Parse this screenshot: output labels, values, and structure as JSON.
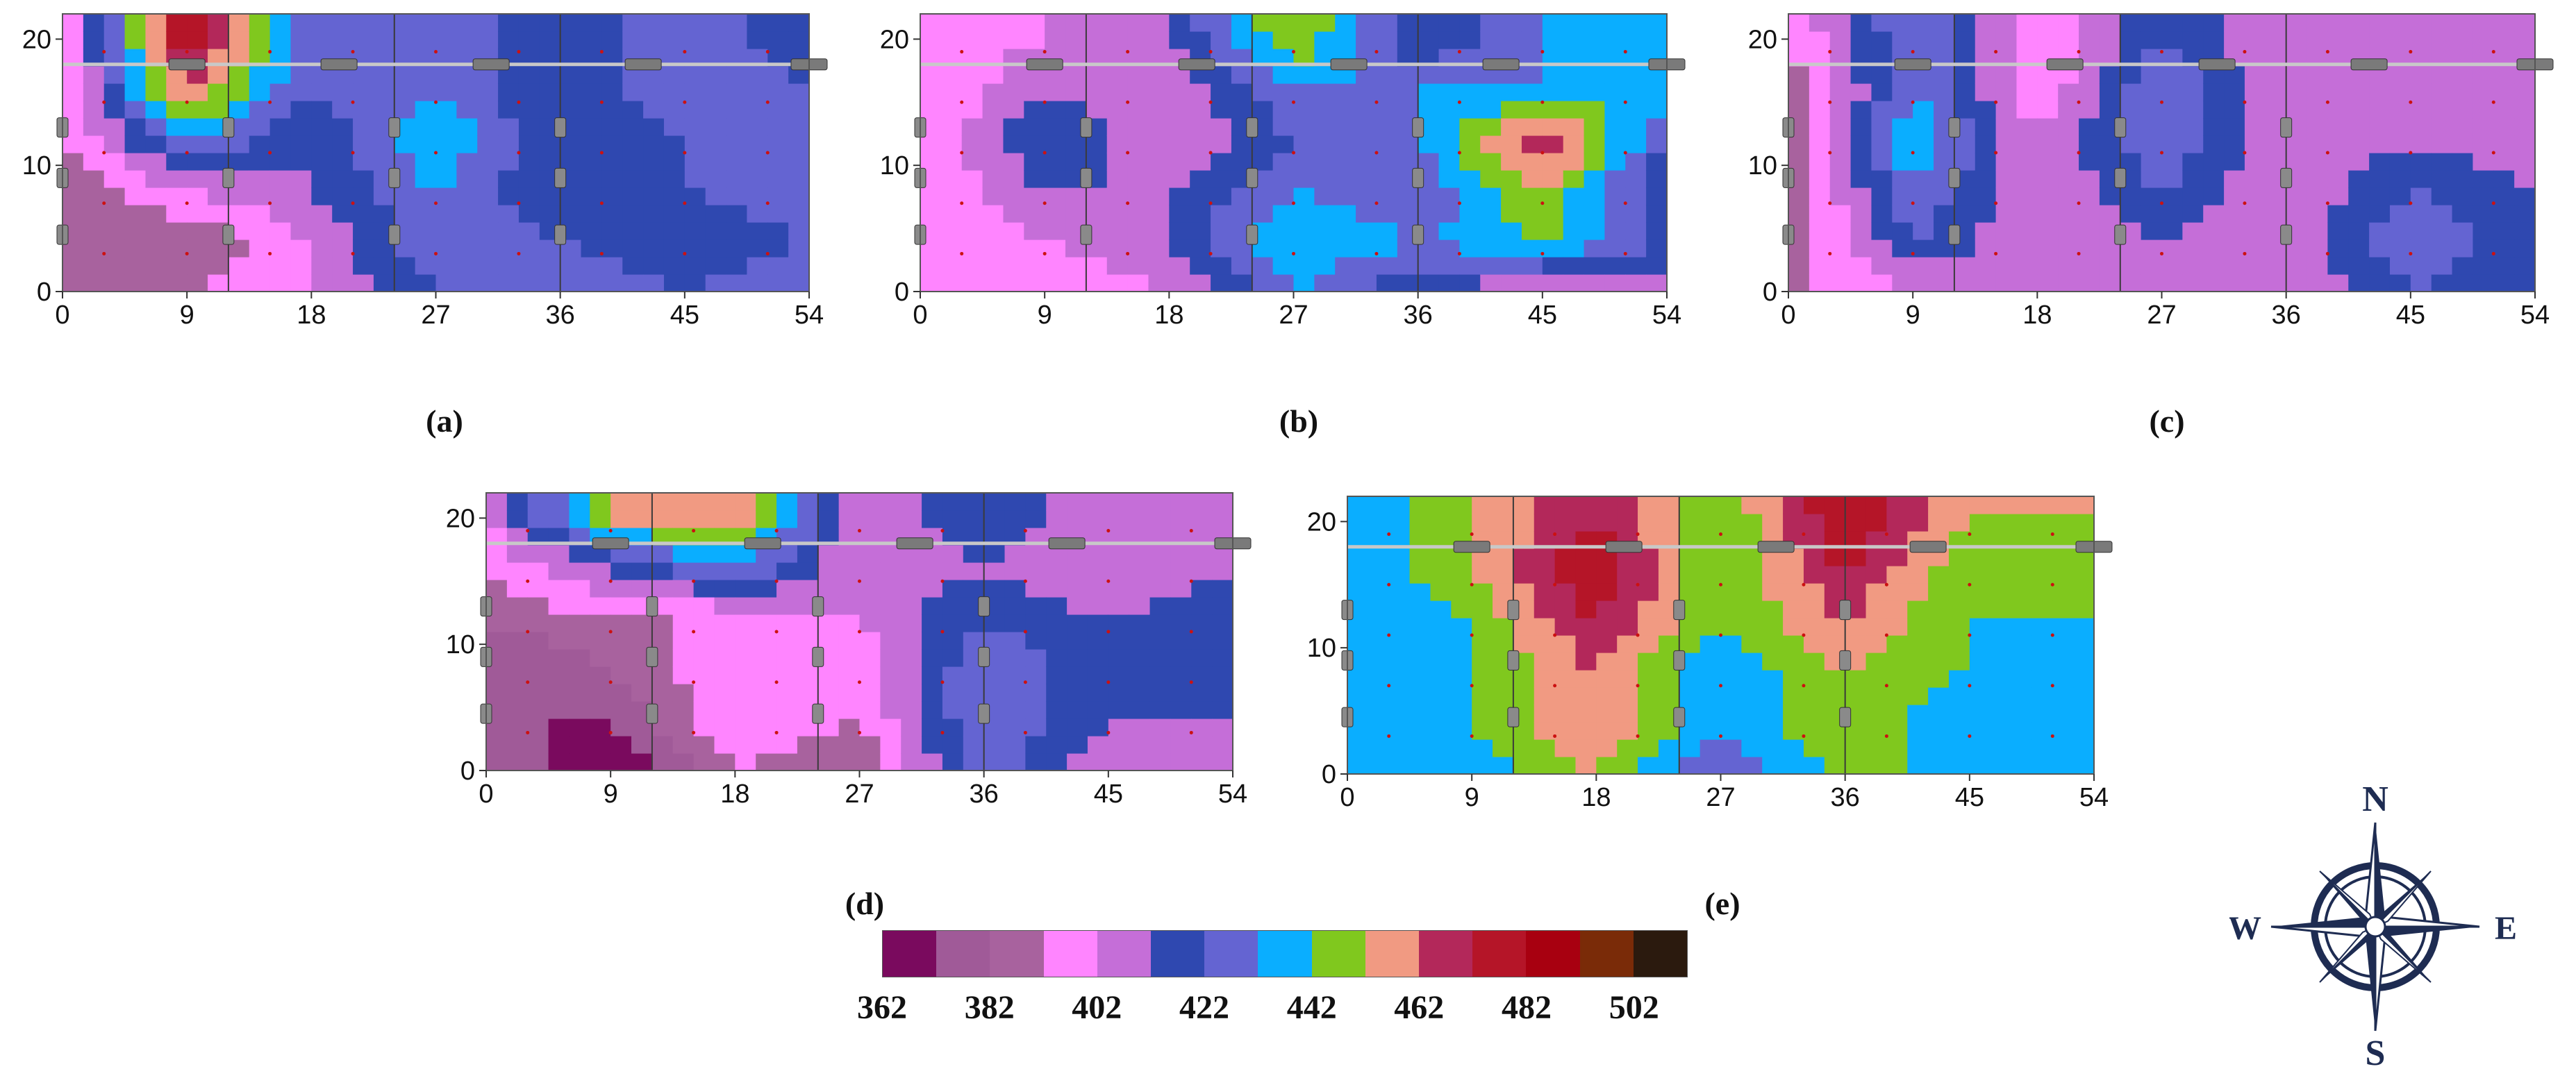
{
  "figure": {
    "panel_labels": [
      "(a)",
      "(b)",
      "(c)",
      "(d)",
      "(e)"
    ]
  },
  "chart_data": [
    {
      "type": "heatmap",
      "panel": "(a)",
      "x_ticks": [
        0,
        9,
        18,
        27,
        36,
        45,
        54
      ],
      "y_ticks": [
        0,
        10,
        20
      ],
      "xlim": [
        0,
        54
      ],
      "ylim": [
        0,
        22
      ],
      "grid_x": [
        0,
        9,
        18,
        27,
        36,
        45,
        54
      ],
      "grid_y": [
        0,
        4,
        8,
        12,
        16,
        20
      ],
      "values": [
        [
          382,
          392,
          402,
          422,
          432,
          422,
          432
        ],
        [
          382,
          382,
          402,
          432,
          422,
          412,
          422
        ],
        [
          382,
          402,
          412,
          432,
          412,
          422,
          432
        ],
        [
          392,
          432,
          412,
          442,
          412,
          422,
          432
        ],
        [
          392,
          462,
          422,
          432,
          412,
          432,
          422
        ],
        [
          392,
          482,
          422,
          432,
          412,
          432,
          412
        ]
      ]
    },
    {
      "type": "heatmap",
      "panel": "(b)",
      "x_ticks": [
        0,
        9,
        18,
        27,
        36,
        45,
        54
      ],
      "y_ticks": [
        0,
        10,
        20
      ],
      "xlim": [
        0,
        54
      ],
      "ylim": [
        0,
        22
      ],
      "grid_x": [
        0,
        9,
        18,
        27,
        36,
        45,
        54
      ],
      "grid_y": [
        0,
        4,
        8,
        12,
        16,
        20
      ],
      "values": [
        [
          402,
          392,
          402,
          432,
          412,
          402,
          402
        ],
        [
          392,
          402,
          412,
          442,
          432,
          442,
          422
        ],
        [
          392,
          412,
          412,
          432,
          422,
          452,
          412
        ],
        [
          392,
          422,
          402,
          422,
          432,
          472,
          422
        ],
        [
          392,
          412,
          402,
          432,
          432,
          432,
          442
        ],
        [
          392,
          402,
          412,
          452,
          412,
          432,
          442
        ]
      ]
    },
    {
      "type": "heatmap",
      "panel": "(c)",
      "x_ticks": [
        0,
        9,
        18,
        27,
        36,
        45,
        54
      ],
      "y_ticks": [
        0,
        10,
        20
      ],
      "xlim": [
        0,
        54
      ],
      "ylim": [
        0,
        22
      ],
      "grid_x": [
        0,
        9,
        18,
        27,
        36,
        45,
        54
      ],
      "grid_y": [
        0,
        4,
        8,
        12,
        16,
        20
      ],
      "values": [
        [
          392,
          402,
          402,
          402,
          402,
          422,
          412
        ],
        [
          382,
          422,
          402,
          412,
          402,
          432,
          412
        ],
        [
          382,
          432,
          402,
          422,
          402,
          422,
          412
        ],
        [
          382,
          442,
          402,
          432,
          402,
          412,
          402
        ],
        [
          382,
          432,
          392,
          432,
          402,
          402,
          402
        ],
        [
          392,
          432,
          392,
          422,
          402,
          402,
          402
        ]
      ]
    },
    {
      "type": "heatmap",
      "panel": "(d)",
      "x_ticks": [
        0,
        9,
        18,
        27,
        36,
        45,
        54
      ],
      "y_ticks": [
        0,
        10,
        20
      ],
      "xlim": [
        0,
        54
      ],
      "ylim": [
        0,
        22
      ],
      "grid_x": [
        0,
        9,
        18,
        27,
        36,
        45,
        54
      ],
      "grid_y": [
        0,
        4,
        8,
        12,
        16,
        20
      ],
      "values": [
        [
          382,
          362,
          392,
          382,
          432,
          402,
          402
        ],
        [
          372,
          372,
          402,
          392,
          432,
          412,
          412
        ],
        [
          372,
          382,
          402,
          392,
          432,
          412,
          422
        ],
        [
          382,
          392,
          392,
          402,
          422,
          412,
          422
        ],
        [
          392,
          412,
          432,
          402,
          412,
          402,
          412
        ],
        [
          402,
          452,
          462,
          402,
          422,
          402,
          412
        ]
      ]
    },
    {
      "type": "heatmap",
      "panel": "(e)",
      "x_ticks": [
        0,
        9,
        18,
        27,
        36,
        45,
        54
      ],
      "y_ticks": [
        0,
        10,
        20
      ],
      "xlim": [
        0,
        54
      ],
      "ylim": [
        0,
        22
      ],
      "grid_x": [
        0,
        9,
        18,
        27,
        36,
        45,
        54
      ],
      "grid_y": [
        0,
        4,
        8,
        12,
        16,
        20
      ],
      "values": [
        [
          442,
          432,
          452,
          422,
          442,
          442,
          442
        ],
        [
          432,
          442,
          462,
          432,
          452,
          432,
          442
        ],
        [
          432,
          442,
          462,
          432,
          452,
          442,
          432
        ],
        [
          432,
          442,
          472,
          442,
          462,
          442,
          442
        ],
        [
          432,
          452,
          482,
          442,
          472,
          442,
          452
        ],
        [
          432,
          452,
          472,
          442,
          482,
          452,
          452
        ]
      ]
    }
  ],
  "legend": {
    "colors": [
      "#7a0a5e",
      "#a05a98",
      "#a8629e",
      "#ff85ff",
      "#c56ed8",
      "#2f48b0",
      "#6464d2",
      "#0aaeff",
      "#80c81e",
      "#f19a82",
      "#b3285a",
      "#b51528",
      "#a80010",
      "#7a2b08",
      "#2b1a0e"
    ],
    "tick_labels": [
      "362",
      "382",
      "402",
      "422",
      "442",
      "462",
      "482",
      "502"
    ]
  },
  "compass": {
    "n_label": "N",
    "s_label": "S",
    "e_label": "E",
    "w_label": "W"
  }
}
